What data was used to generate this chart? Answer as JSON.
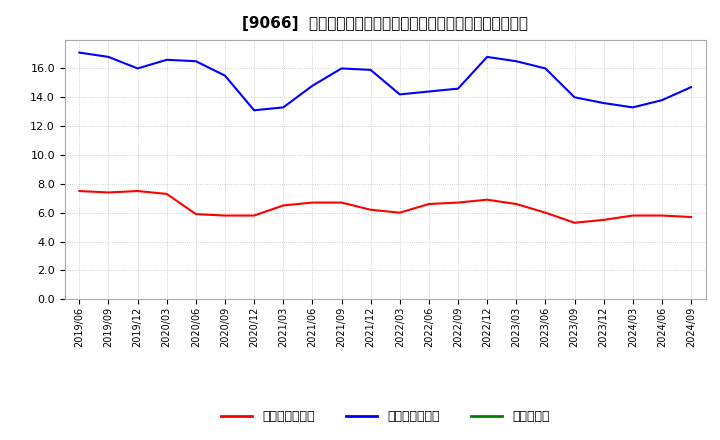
{
  "title": "[9066]  売上債権回転率、買入債務回転率、在庫回転率の推移",
  "x_labels": [
    "2019/06",
    "2019/09",
    "2019/12",
    "2020/03",
    "2020/06",
    "2020/09",
    "2020/12",
    "2021/03",
    "2021/06",
    "2021/09",
    "2021/12",
    "2022/03",
    "2022/06",
    "2022/09",
    "2022/12",
    "2023/03",
    "2023/06",
    "2023/09",
    "2023/12",
    "2024/03",
    "2024/06",
    "2024/09"
  ],
  "receivables_turnover": [
    7.5,
    7.4,
    7.5,
    7.3,
    5.9,
    5.8,
    5.8,
    6.5,
    6.7,
    6.7,
    6.2,
    6.0,
    6.6,
    6.7,
    6.9,
    6.6,
    6.0,
    5.3,
    5.5,
    5.8,
    5.8,
    5.7
  ],
  "payables_turnover": [
    17.1,
    16.8,
    16.0,
    16.6,
    16.5,
    15.5,
    13.1,
    13.3,
    14.8,
    16.0,
    15.9,
    14.2,
    14.4,
    14.6,
    16.8,
    16.5,
    16.0,
    14.0,
    13.6,
    13.3,
    13.8,
    14.7
  ],
  "receivables_color": "#ff0000",
  "payables_color": "#0000ff",
  "inventory_color": "#008000",
  "ylim": [
    0.0,
    18.0
  ],
  "yticks": [
    0.0,
    2.0,
    4.0,
    6.0,
    8.0,
    10.0,
    12.0,
    14.0,
    16.0
  ],
  "legend_labels": [
    "売上債権回転率",
    "買入債務回転率",
    "在庫回転率"
  ],
  "background_color": "#ffffff",
  "plot_bg_color": "#ffffff",
  "grid_color": "#999999",
  "title_fontsize": 11,
  "tick_fontsize": 8,
  "legend_fontsize": 9
}
